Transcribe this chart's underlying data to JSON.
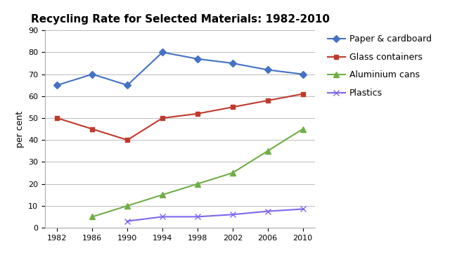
{
  "title": "Recycling Rate for Selected Materials: 1982-2010",
  "ylabel": "per cent",
  "years": [
    1982,
    1986,
    1990,
    1994,
    1998,
    2002,
    2006,
    2010
  ],
  "series": [
    {
      "label": "Paper & cardboard",
      "values": [
        65,
        70,
        65,
        80,
        77,
        75,
        72,
        70
      ],
      "color": "#4472C4",
      "marker": "D",
      "markersize": 5
    },
    {
      "label": "Glass containers",
      "values": [
        50,
        45,
        40,
        50,
        52,
        55,
        58,
        61
      ],
      "color": "#C0392B",
      "marker": "s",
      "markersize": 5
    },
    {
      "label": "Aluminium cans",
      "values": [
        null,
        5,
        10,
        15,
        20,
        25,
        35,
        45
      ],
      "color": "#70AD47",
      "marker": "^",
      "markersize": 6
    },
    {
      "label": "Plastics",
      "values": [
        null,
        null,
        3,
        5,
        5,
        6,
        7.5,
        8.5
      ],
      "color": "#7B68EE",
      "marker": "x",
      "markersize": 6
    }
  ],
  "ylim": [
    0,
    90
  ],
  "yticks": [
    0,
    10,
    20,
    30,
    40,
    50,
    60,
    70,
    80,
    90
  ],
  "background_color": "#FFFFFF",
  "grid_color": "#BBBBBB",
  "title_fontsize": 11,
  "label_fontsize": 9,
  "tick_fontsize": 8,
  "legend_fontsize": 9
}
